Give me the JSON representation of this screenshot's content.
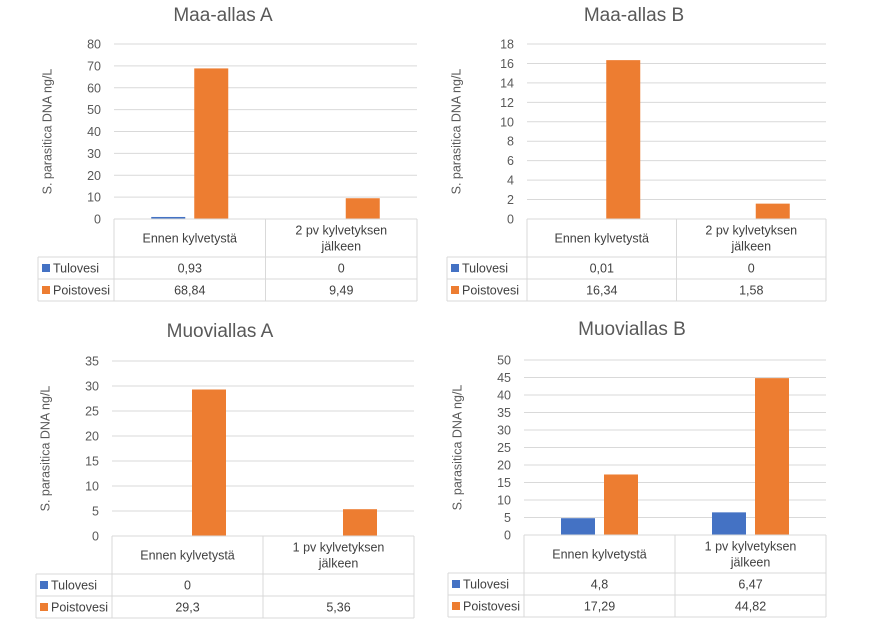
{
  "chart_data": [
    {
      "type": "bar",
      "title": "Maa-allas A",
      "ylabel": "S. parasitica DNA ng/L",
      "xlabel": "",
      "ylim": [
        0,
        80
      ],
      "yticks": [
        0,
        10,
        20,
        30,
        40,
        50,
        60,
        70,
        80
      ],
      "grid": true,
      "legend": "data-table",
      "categories": [
        "Ennen kylvetystä",
        "2 pv kylvetyksen jälkeen"
      ],
      "categories_lines": [
        [
          "Ennen kylvetystä"
        ],
        [
          "2 pv kylvetyksen",
          "jälkeen"
        ]
      ],
      "series": [
        {
          "name": "Tulovesi",
          "color": "#4472c4",
          "values": [
            0.93,
            0
          ],
          "labels": [
            "0,93",
            "0"
          ]
        },
        {
          "name": "Poistovesi",
          "color": "#ed7d31",
          "values": [
            68.84,
            9.49
          ],
          "labels": [
            "68,84",
            "9,49"
          ]
        }
      ]
    },
    {
      "type": "bar",
      "title": "Maa-allas B",
      "ylabel": "S. parasitica DNA ng/L",
      "xlabel": "",
      "ylim": [
        0,
        18
      ],
      "yticks": [
        0,
        2,
        4,
        6,
        8,
        10,
        12,
        14,
        16,
        18
      ],
      "grid": true,
      "legend": "data-table",
      "categories": [
        "Ennen kylvetystä",
        "2 pv kylvetyksen jälkeen"
      ],
      "categories_lines": [
        [
          "Ennen kylvetystä"
        ],
        [
          "2 pv kylvetyksen",
          "jälkeen"
        ]
      ],
      "series": [
        {
          "name": "Tulovesi",
          "color": "#4472c4",
          "values": [
            0.01,
            0
          ],
          "labels": [
            "0,01",
            "0"
          ]
        },
        {
          "name": "Poistovesi",
          "color": "#ed7d31",
          "values": [
            16.34,
            1.58
          ],
          "labels": [
            "16,34",
            "1,58"
          ]
        }
      ]
    },
    {
      "type": "bar",
      "title": "Muoviallas A",
      "ylabel": "S. parasitica DNA ng/L",
      "xlabel": "",
      "ylim": [
        0,
        35
      ],
      "yticks": [
        0,
        5,
        10,
        15,
        20,
        25,
        30,
        35
      ],
      "grid": true,
      "legend": "data-table",
      "categories": [
        "Ennen kylvetystä",
        "1 pv kylvetyksen jälkeen"
      ],
      "categories_lines": [
        [
          "Ennen kylvetystä"
        ],
        [
          "1 pv kylvetyksen",
          "jälkeen"
        ]
      ],
      "series": [
        {
          "name": "Tulovesi",
          "color": "#4472c4",
          "values": [
            0,
            null
          ],
          "labels": [
            "0",
            ""
          ]
        },
        {
          "name": "Poistovesi",
          "color": "#ed7d31",
          "values": [
            29.3,
            5.36
          ],
          "labels": [
            "29,3",
            "5,36"
          ]
        }
      ]
    },
    {
      "type": "bar",
      "title": "Muoviallas B",
      "ylabel": "S. parasitica DNA ng/L",
      "xlabel": "",
      "ylim": [
        0,
        50
      ],
      "yticks": [
        0,
        5,
        10,
        15,
        20,
        25,
        30,
        35,
        40,
        45,
        50
      ],
      "grid": true,
      "legend": "data-table",
      "categories": [
        "Ennen kylvetystä",
        "1 pv kylvetyksen jälkeen"
      ],
      "categories_lines": [
        [
          "Ennen kylvetystä"
        ],
        [
          "1 pv kylvetyksen",
          "jälkeen"
        ]
      ],
      "series": [
        {
          "name": "Tulovesi",
          "color": "#4472c4",
          "values": [
            4.8,
            6.47
          ],
          "labels": [
            "4,8",
            "6,47"
          ]
        },
        {
          "name": "Poistovesi",
          "color": "#ed7d31",
          "values": [
            17.29,
            44.82
          ],
          "labels": [
            "17,29",
            "44,82"
          ]
        }
      ]
    }
  ]
}
